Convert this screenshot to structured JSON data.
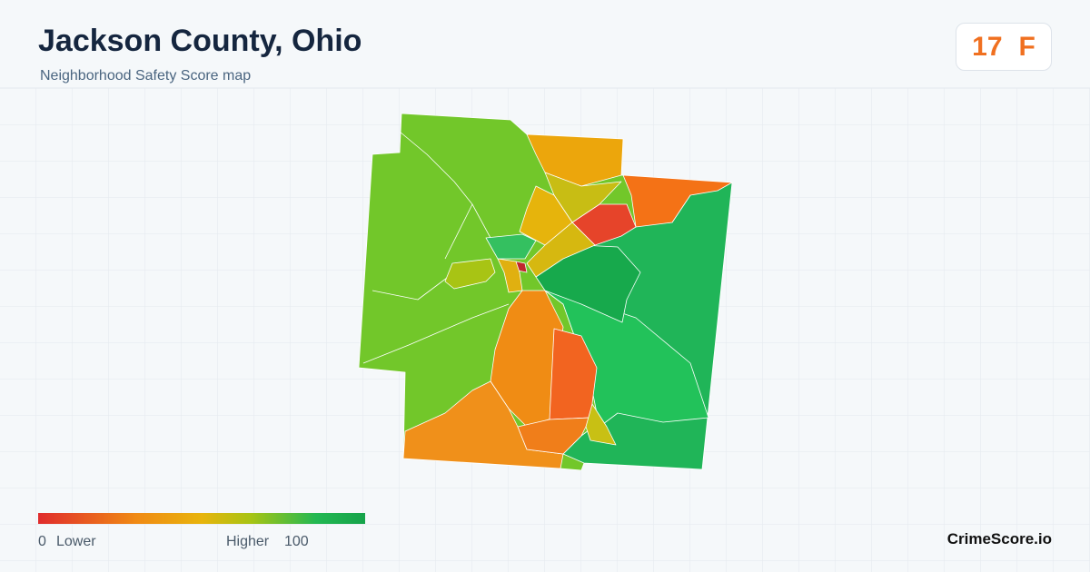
{
  "header": {
    "title": "Jackson County, Ohio",
    "subtitle": "Neighborhood Safety Score map"
  },
  "score": {
    "value": 17,
    "grade": "F"
  },
  "legend": {
    "min": 0,
    "low": "Lower",
    "high": "Higher",
    "max": 100
  },
  "brand": "CrimeScore.io"
}
